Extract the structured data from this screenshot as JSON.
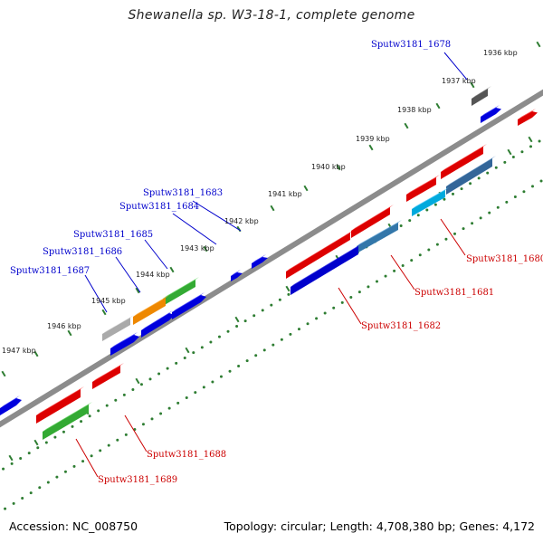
{
  "title": "Shewanella sp. W3-18-1, complete genome",
  "footer": {
    "accession": "Accession: NC_008750",
    "topology": "Topology: circular; Length: 4,708,380 bp; Genes: 4,172"
  },
  "colors": {
    "backbone": "#8c8c8c",
    "tick_dots": "#2e7d32",
    "forward_label": "#0000cc",
    "reverse_label": "#cc0000"
  },
  "scale_labels": [
    "1936 kbp",
    "1937 kbp",
    "1938 kbp",
    "1939 kbp",
    "1940 kbp",
    "1941 kbp",
    "1942 kbp",
    "1943 kbp",
    "1944 kbp",
    "1945 kbp",
    "1946 kbp",
    "1947 kbp"
  ],
  "gene_labels": {
    "forward": [
      "Sputw3181_1678",
      "Sputw3181_1683",
      "Sputw3181_1684",
      "Sputw3181_1685",
      "Sputw3181_1686",
      "Sputw3181_1687"
    ],
    "reverse": [
      "Sputw3181_1680",
      "Sputw3181_1681",
      "Sputw3181_1682",
      "Sputw3181_1688",
      "Sputw3181_1689"
    ]
  }
}
